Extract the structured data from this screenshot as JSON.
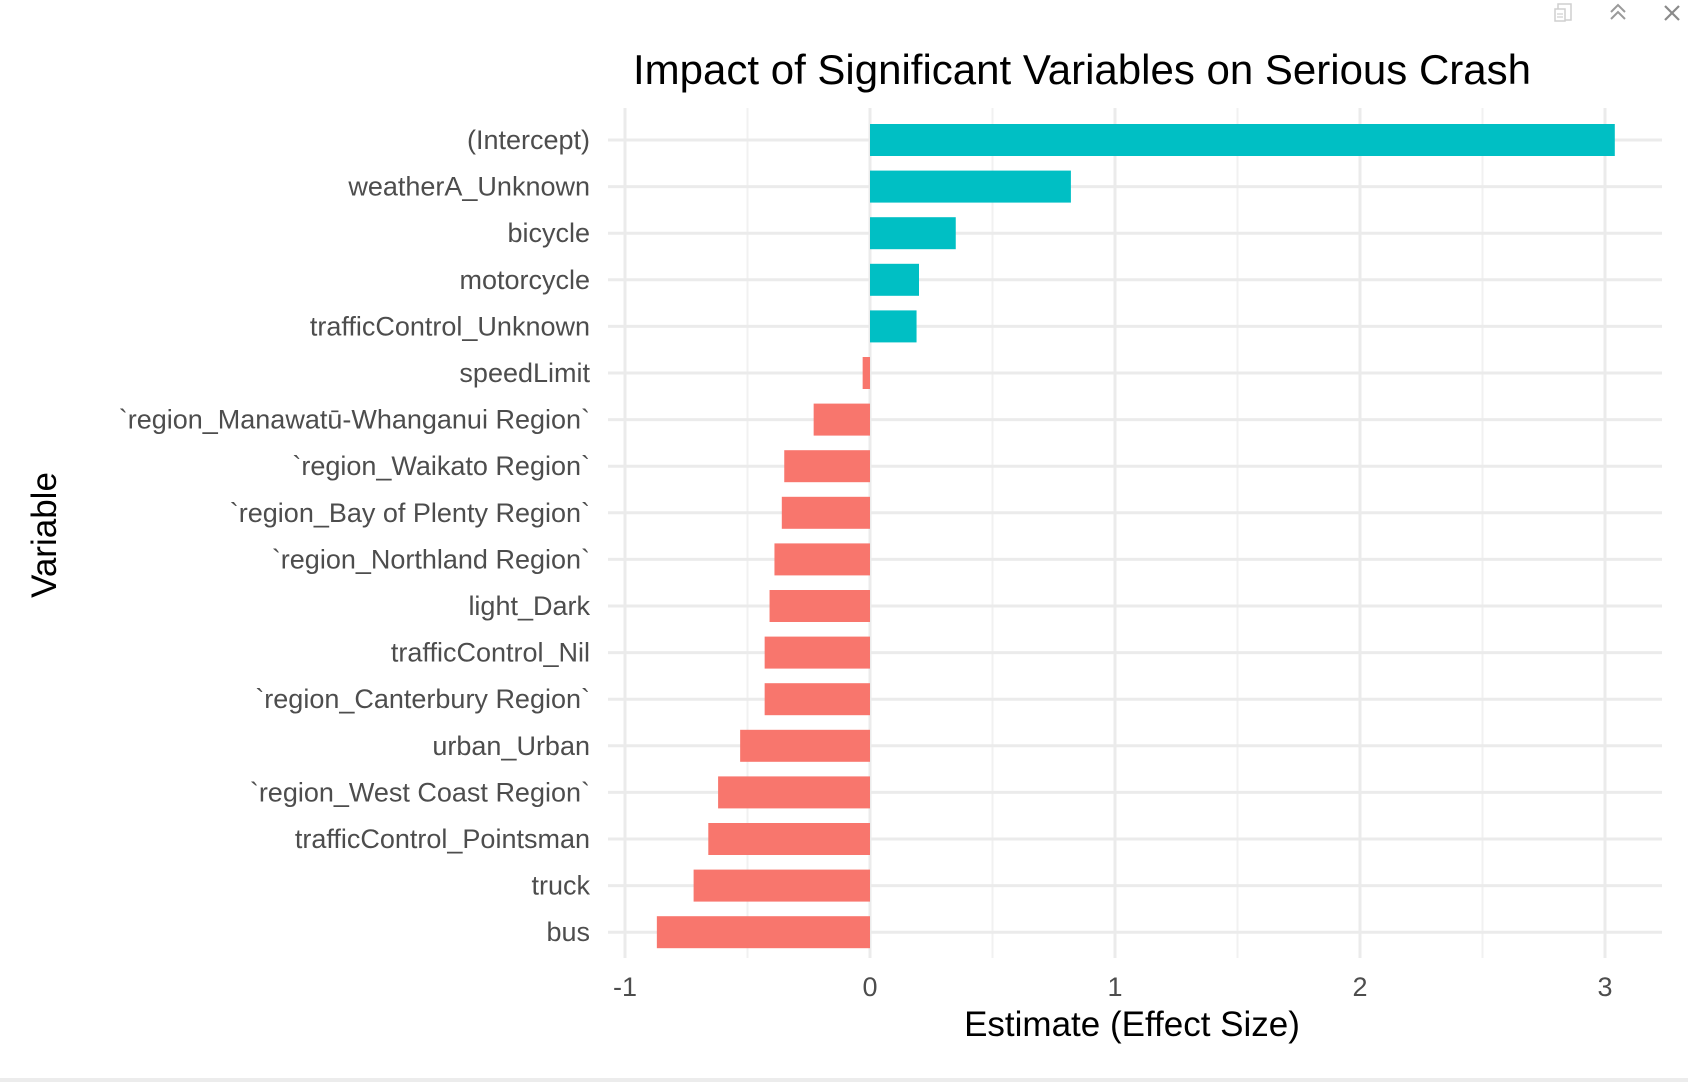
{
  "window": {
    "buttons": [
      {
        "name": "export-icon",
        "label": "Export"
      },
      {
        "name": "collapse-icon",
        "label": "Collapse"
      },
      {
        "name": "close-icon",
        "label": "Close"
      }
    ]
  },
  "chart_data": {
    "type": "bar",
    "orientation": "horizontal",
    "title": "Impact of Significant Variables on Serious Crash",
    "xlabel": "Estimate (Effect Size)",
    "ylabel": "Variable",
    "xlim": [
      -1.1,
      3.25
    ],
    "xticks": [
      -1,
      0,
      1,
      2,
      3
    ],
    "xtick_labels": [
      "-1",
      "0",
      "1",
      "2",
      "3"
    ],
    "grid": true,
    "legend": "none",
    "colors": {
      "positive": "#00BFC4",
      "negative": "#F8766D",
      "grid": "#ebebeb",
      "text": "#4d4d4d",
      "title": "#000000"
    },
    "categories": [
      "(Intercept)",
      "weatherA_Unknown",
      "bicycle",
      "motorcycle",
      "trafficControl_Unknown",
      "speedLimit",
      "`region_Manawatū-Whanganui Region`",
      "`region_Waikato Region`",
      "`region_Bay of Plenty Region`",
      "`region_Northland Region`",
      "light_Dark",
      "trafficControl_Nil",
      "`region_Canterbury Region`",
      "urban_Urban",
      "`region_West Coast Region`",
      "trafficControl_Pointsman",
      "truck",
      "bus"
    ],
    "values": [
      3.04,
      0.82,
      0.35,
      0.2,
      0.19,
      -0.03,
      -0.23,
      -0.35,
      -0.36,
      -0.39,
      -0.41,
      -0.43,
      -0.43,
      -0.53,
      -0.62,
      -0.66,
      -0.72,
      -0.87
    ]
  }
}
